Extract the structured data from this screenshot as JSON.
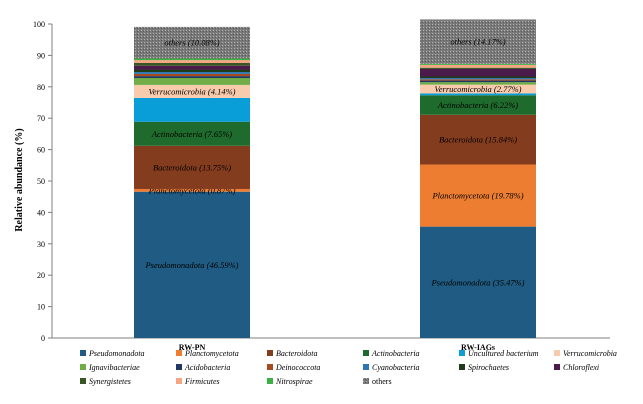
{
  "chart_data": {
    "type": "bar",
    "stacked": true,
    "ylabel": "Relative abundance (%)",
    "ylim": [
      0,
      100
    ],
    "yticks": [
      0,
      10,
      20,
      30,
      40,
      50,
      60,
      70,
      80,
      90,
      100
    ],
    "categories": [
      "RW-PN",
      "RW-IAGs"
    ],
    "grid": false,
    "legend_position": "bottom",
    "series": [
      {
        "name": "Pseudomonadota",
        "color": "#1f5b82",
        "values": [
          46.59,
          35.47
        ],
        "labels": [
          "Pseudomonadota (46.59%)",
          "Pseudomonadota (35.47%)"
        ]
      },
      {
        "name": "Planctomycetota",
        "color": "#ed7d31",
        "values": [
          0.87,
          19.78
        ],
        "labels": [
          "Planctomycetota (0.87%)",
          "Planctomycetota (19.78%)"
        ]
      },
      {
        "name": "Bacteroidota",
        "color": "#843c1f",
        "values": [
          13.75,
          15.84
        ],
        "labels": [
          "Bacteroidota (13.75%)",
          "Bacteroidota (15.84%)"
        ]
      },
      {
        "name": "Actinobacteria",
        "color": "#1e6b2d",
        "values": [
          7.65,
          6.22
        ],
        "labels": [
          "Actinobacteria (7.65%)",
          "Actinobacteria (6.22%)"
        ]
      },
      {
        "name": "Uncultured bacterium",
        "color": "#0a9ed9",
        "values": [
          7.6,
          0.6
        ],
        "labels": [
          "",
          ""
        ]
      },
      {
        "name": "Verrucomicrobia",
        "color": "#f8cbad",
        "values": [
          4.14,
          2.77
        ],
        "labels": [
          "Verrucomicrobia (4.14%)",
          "Verrucomicrobia (2.77%)"
        ]
      },
      {
        "name": "Ignavibacteriae",
        "color": "#70ad47",
        "values": [
          2.2,
          0.8
        ],
        "labels": [
          "",
          ""
        ]
      },
      {
        "name": "Acidobacteria",
        "color": "#1f3864",
        "values": [
          0.6,
          0.5
        ],
        "labels": [
          "",
          ""
        ]
      },
      {
        "name": "Deinococcota",
        "color": "#a64b1f",
        "values": [
          0.7,
          0.4
        ],
        "labels": [
          "",
          ""
        ]
      },
      {
        "name": "Cyanobacteria",
        "color": "#2e75b6",
        "values": [
          0.6,
          0.4
        ],
        "labels": [
          "",
          ""
        ]
      },
      {
        "name": "Spirochaetes",
        "color": "#203b1a",
        "values": [
          0.8,
          0.5
        ],
        "labels": [
          "",
          ""
        ]
      },
      {
        "name": "Chloroflexi",
        "color": "#4b1b4c",
        "values": [
          1.2,
          2.4
        ],
        "labels": [
          "",
          ""
        ]
      },
      {
        "name": "Synergistetes",
        "color": "#375623",
        "values": [
          0.9,
          0.4
        ],
        "labels": [
          "",
          ""
        ]
      },
      {
        "name": "Firmicutes",
        "color": "#f4a582",
        "values": [
          0.9,
          0.9
        ],
        "labels": [
          "",
          ""
        ]
      },
      {
        "name": "Nitrospirae",
        "color": "#3cb043",
        "values": [
          0.5,
          0.3
        ],
        "labels": [
          "",
          ""
        ]
      },
      {
        "name": "others",
        "color": "#808080",
        "values": [
          10.08,
          14.17
        ],
        "labels": [
          "others (10.08%)",
          "others (14.17%)"
        ]
      }
    ]
  }
}
